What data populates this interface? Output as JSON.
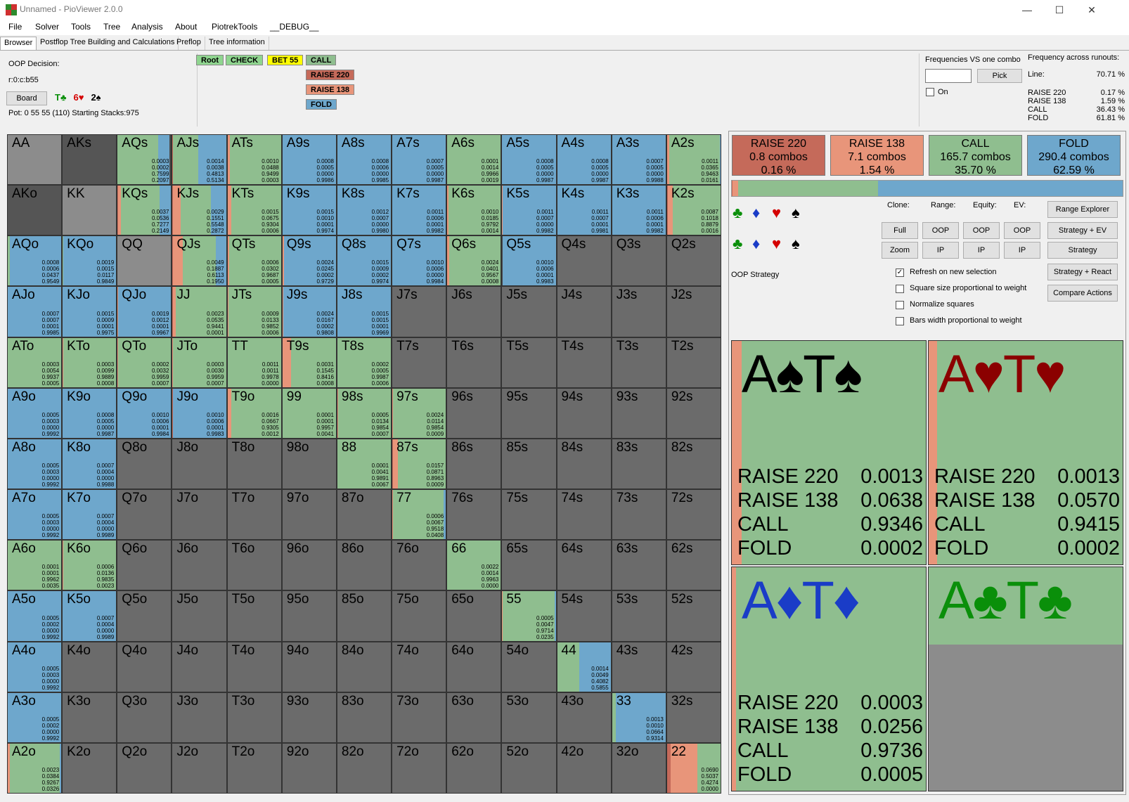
{
  "window": {
    "title": "Unnamed - PioViewer 2.0.0",
    "minimize": "—",
    "maximize": "☐",
    "close": "✕"
  },
  "menu": [
    "File",
    "Solver",
    "Tools",
    "Tree",
    "Analysis",
    "About",
    "PiotrekTools",
    "__DEBUG__"
  ],
  "tabs": [
    "Browser",
    "Postflop Tree Building and Calculations",
    "Preflop",
    "Tree information"
  ],
  "info": {
    "decision": "OOP Decision:",
    "line": "r:0:c:b55",
    "board_btn": "Board",
    "board_cards": [
      {
        "t": "T♣",
        "c": "#0a8f0a"
      },
      {
        "t": "6♥",
        "c": "#d40000"
      },
      {
        "t": "2♠",
        "c": "#000"
      }
    ],
    "pot": "Pot: 0 55 55 (110) Starting Stacks:975"
  },
  "tree_nodes": [
    {
      "t": "Root",
      "bg": "#8fd58f"
    },
    {
      "t": "CHECK",
      "bg": "#8fd58f"
    },
    {
      "t": "BET 55",
      "bg": "#ffff00"
    },
    {
      "t": "CALL",
      "bg": "#8fbe8f"
    },
    {
      "t": "RAISE 220",
      "bg": "#c56a5a"
    },
    {
      "t": "RAISE 138",
      "bg": "#e8957a"
    },
    {
      "t": "FOLD",
      "bg": "#6ea7cc"
    }
  ],
  "freq_panel": {
    "vs_combo": "Frequencies VS one combo",
    "pick": "Pick",
    "on": "On",
    "across": "Frequency across runouts:",
    "rows": [
      [
        "Line:",
        "70.71 %"
      ],
      [
        "RAISE 220",
        "0.17 %"
      ],
      [
        "RAISE 138",
        "1.59 %"
      ],
      [
        "CALL",
        "36.43 %"
      ],
      [
        "FOLD",
        "61.81 %"
      ]
    ]
  },
  "colors": {
    "raise220": "#c56a5a",
    "raise138": "#e8957a",
    "call": "#8fbe8f",
    "fold": "#6ea7cc",
    "empty": "#6b6b6b",
    "notinrange": "#8c8c8c"
  },
  "grid": [
    [
      "AA",
      "N",
      ""
    ],
    [
      "AKs",
      "D",
      ""
    ],
    [
      "AQs",
      "M",
      "0.0003 0.0002 0.7599 0.2097"
    ],
    [
      "AJs",
      "M",
      "0.0014 0.0038 0.4813 0.5134"
    ],
    [
      "ATs",
      "M",
      "0.0010 0.0488 0.9499 0.0003"
    ],
    [
      "A9s",
      "F",
      "0.0008 0.0005 0.0000 0.9986"
    ],
    [
      "A8s",
      "F",
      "0.0008 0.0006 0.0000 0.9985"
    ],
    [
      "A7s",
      "F",
      "0.0007 0.0005 0.0000 0.9987"
    ],
    [
      "A6s",
      "M",
      "0.0001 0.0014 0.9966 0.0019"
    ],
    [
      "A5s",
      "F",
      "0.0008 0.0005 0.0000 0.9987"
    ],
    [
      "A4s",
      "F",
      "0.0008 0.0005 0.0000 0.9987"
    ],
    [
      "A3s",
      "F",
      "0.0007 0.0005 0.0000 0.9988"
    ],
    [
      "A2s",
      "M",
      "0.0011 0.0365 0.9463 0.0161"
    ],
    [
      "AKo",
      "D",
      ""
    ],
    [
      "KK",
      "N",
      ""
    ],
    [
      "KQs",
      "M",
      "0.0037 0.0536 0.7277 0.2149"
    ],
    [
      "KJs",
      "M",
      "0.0029 0.1551 0.5548 0.2872"
    ],
    [
      "KTs",
      "M",
      "0.0015 0.0675 0.9304 0.0006"
    ],
    [
      "K9s",
      "F",
      "0.0015 0.0010 0.0001 0.9974"
    ],
    [
      "K8s",
      "F",
      "0.0012 0.0007 0.0000 0.9980"
    ],
    [
      "K7s",
      "F",
      "0.0011 0.0006 0.0001 0.9982"
    ],
    [
      "K6s",
      "M",
      "0.0010 0.0185 0.9792 0.0014"
    ],
    [
      "K5s",
      "F",
      "0.0011 0.0007 0.0000 0.9982"
    ],
    [
      "K4s",
      "F",
      "0.0011 0.0007 0.0001 0.9981"
    ],
    [
      "K3s",
      "F",
      "0.0011 0.0006 0.0001 0.9982"
    ],
    [
      "K2s",
      "M",
      "0.0087 0.1018 0.8879 0.0016"
    ],
    [
      "AQo",
      "F",
      "0.0008 0.0006 0.0437 0.9549"
    ],
    [
      "KQo",
      "F",
      "0.0019 0.0015 0.0117 0.9849"
    ],
    [
      "QQ",
      "N",
      ""
    ],
    [
      "QJs",
      "M",
      "0.0049 0.1887 0.6113 0.1950"
    ],
    [
      "QTs",
      "M",
      "0.0006 0.0302 0.9687 0.0005"
    ],
    [
      "Q9s",
      "F",
      "0.0024 0.0245 0.0002 0.9729"
    ],
    [
      "Q8s",
      "F",
      "0.0015 0.0009 0.0002 0.9974"
    ],
    [
      "Q7s",
      "F",
      "0.0010 0.0006 0.0000 0.9984"
    ],
    [
      "Q6s",
      "M",
      "0.0024 0.0401 0.9567 0.0008"
    ],
    [
      "Q5s",
      "F",
      "0.0010 0.0006 0.0001 0.9983"
    ],
    [
      "Q4s",
      "E",
      ""
    ],
    [
      "Q3s",
      "E",
      ""
    ],
    [
      "Q2s",
      "E",
      ""
    ],
    [
      "AJo",
      "F",
      "0.0007 0.0007 0.0001 0.9985"
    ],
    [
      "KJo",
      "F",
      "0.0015 0.0009 0.0001 0.9975"
    ],
    [
      "QJo",
      "F",
      "0.0019 0.0012 0.0001 0.9967"
    ],
    [
      "JJ",
      "M",
      "0.0023 0.0535 0.9441 0.0001"
    ],
    [
      "JTs",
      "M",
      "0.0009 0.0133 0.9852 0.0006"
    ],
    [
      "J9s",
      "F",
      "0.0024 0.0167 0.0002 0.9808"
    ],
    [
      "J8s",
      "F",
      "0.0015 0.0015 0.0001 0.9969"
    ],
    [
      "J7s",
      "E",
      ""
    ],
    [
      "J6s",
      "E",
      ""
    ],
    [
      "J5s",
      "E",
      ""
    ],
    [
      "J4s",
      "E",
      ""
    ],
    [
      "J3s",
      "E",
      ""
    ],
    [
      "J2s",
      "E",
      ""
    ],
    [
      "ATo",
      "M",
      "0.0003 0.0054 0.9937 0.0005"
    ],
    [
      "KTo",
      "M",
      "0.0003 0.0099 0.9889 0.0008"
    ],
    [
      "QTo",
      "M",
      "0.0002 0.0032 0.9959 0.0007"
    ],
    [
      "JTo",
      "M",
      "0.0003 0.0030 0.9959 0.0007"
    ],
    [
      "TT",
      "M",
      "0.0011 0.0011 0.9978 0.0000"
    ],
    [
      "T9s",
      "M",
      "0.0031 0.1545 0.8416 0.0008"
    ],
    [
      "T8s",
      "M",
      "0.0002 0.0005 0.9987 0.0006"
    ],
    [
      "T7s",
      "E",
      ""
    ],
    [
      "T6s",
      "E",
      ""
    ],
    [
      "T5s",
      "E",
      ""
    ],
    [
      "T4s",
      "E",
      ""
    ],
    [
      "T3s",
      "E",
      ""
    ],
    [
      "T2s",
      "E",
      ""
    ],
    [
      "A9o",
      "F",
      "0.0005 0.0003 0.0000 0.9992"
    ],
    [
      "K9o",
      "F",
      "0.0008 0.0005 0.0000 0.9987"
    ],
    [
      "Q9o",
      "F",
      "0.0010 0.0006 0.0001 0.9984"
    ],
    [
      "J9o",
      "F",
      "0.0010 0.0006 0.0001 0.9983"
    ],
    [
      "T9o",
      "M",
      "0.0016 0.0667 0.9305 0.0012"
    ],
    [
      "99",
      "M",
      "0.0001 0.0001 0.9957 0.0041"
    ],
    [
      "98s",
      "M",
      "0.0005 0.0134 0.9854 0.0007"
    ],
    [
      "97s",
      "M",
      "0.0024 0.0114 0.9854 0.0009"
    ],
    [
      "96s",
      "E",
      ""
    ],
    [
      "95s",
      "E",
      ""
    ],
    [
      "94s",
      "E",
      ""
    ],
    [
      "93s",
      "E",
      ""
    ],
    [
      "92s",
      "E",
      ""
    ],
    [
      "A8o",
      "F",
      "0.0005 0.0003 0.0000 0.9992"
    ],
    [
      "K8o",
      "F",
      "0.0007 0.0004 0.0000 0.9988"
    ],
    [
      "Q8o",
      "E",
      ""
    ],
    [
      "J8o",
      "E",
      ""
    ],
    [
      "T8o",
      "E",
      ""
    ],
    [
      "98o",
      "E",
      ""
    ],
    [
      "88",
      "M",
      "0.0001 0.0041 0.9891 0.0067"
    ],
    [
      "87s",
      "M",
      "0.0157 0.0871 0.8963 0.0009"
    ],
    [
      "86s",
      "E",
      ""
    ],
    [
      "85s",
      "E",
      ""
    ],
    [
      "84s",
      "E",
      ""
    ],
    [
      "83s",
      "E",
      ""
    ],
    [
      "82s",
      "E",
      ""
    ],
    [
      "A7o",
      "F",
      "0.0005 0.0003 0.0000 0.9992"
    ],
    [
      "K7o",
      "F",
      "0.0007 0.0004 0.0000 0.9989"
    ],
    [
      "Q7o",
      "E",
      ""
    ],
    [
      "J7o",
      "E",
      ""
    ],
    [
      "T7o",
      "E",
      ""
    ],
    [
      "97o",
      "E",
      ""
    ],
    [
      "87o",
      "E",
      ""
    ],
    [
      "77",
      "M",
      "0.0006 0.0067 0.9518 0.0408"
    ],
    [
      "76s",
      "E",
      ""
    ],
    [
      "75s",
      "E",
      ""
    ],
    [
      "74s",
      "E",
      ""
    ],
    [
      "73s",
      "E",
      ""
    ],
    [
      "72s",
      "E",
      ""
    ],
    [
      "A6o",
      "M",
      "0.0001 0.0001 0.9962 0.0035"
    ],
    [
      "K6o",
      "M",
      "0.0006 0.0136 0.9835 0.0023"
    ],
    [
      "Q6o",
      "E",
      ""
    ],
    [
      "J6o",
      "E",
      ""
    ],
    [
      "T6o",
      "E",
      ""
    ],
    [
      "96o",
      "E",
      ""
    ],
    [
      "86o",
      "E",
      ""
    ],
    [
      "76o",
      "E",
      ""
    ],
    [
      "66",
      "M",
      "0.0022 0.0014 0.9963 0.0000"
    ],
    [
      "65s",
      "E",
      ""
    ],
    [
      "64s",
      "E",
      ""
    ],
    [
      "63s",
      "E",
      ""
    ],
    [
      "62s",
      "E",
      ""
    ],
    [
      "A5o",
      "F",
      "0.0005 0.0002 0.0000 0.9992"
    ],
    [
      "K5o",
      "F",
      "0.0007 0.0004 0.0000 0.9989"
    ],
    [
      "Q5o",
      "E",
      ""
    ],
    [
      "J5o",
      "E",
      ""
    ],
    [
      "T5o",
      "E",
      ""
    ],
    [
      "95o",
      "E",
      ""
    ],
    [
      "85o",
      "E",
      ""
    ],
    [
      "75o",
      "E",
      ""
    ],
    [
      "65o",
      "E",
      ""
    ],
    [
      "55",
      "M",
      "0.0005 0.0047 0.9714 0.0235"
    ],
    [
      "54s",
      "E",
      ""
    ],
    [
      "53s",
      "E",
      ""
    ],
    [
      "52s",
      "E",
      ""
    ],
    [
      "A4o",
      "F",
      "0.0005 0.0003 0.0000 0.9992"
    ],
    [
      "K4o",
      "E",
      ""
    ],
    [
      "Q4o",
      "E",
      ""
    ],
    [
      "J4o",
      "E",
      ""
    ],
    [
      "T4o",
      "E",
      ""
    ],
    [
      "94o",
      "E",
      ""
    ],
    [
      "84o",
      "E",
      ""
    ],
    [
      "74o",
      "E",
      ""
    ],
    [
      "64o",
      "E",
      ""
    ],
    [
      "54o",
      "E",
      ""
    ],
    [
      "44",
      "M",
      "0.0014 0.0049 0.4082 0.5855"
    ],
    [
      "43s",
      "E",
      ""
    ],
    [
      "42s",
      "E",
      ""
    ],
    [
      "A3o",
      "F",
      "0.0005 0.0002 0.0000 0.9992"
    ],
    [
      "K3o",
      "E",
      ""
    ],
    [
      "Q3o",
      "E",
      ""
    ],
    [
      "J3o",
      "E",
      ""
    ],
    [
      "T3o",
      "E",
      ""
    ],
    [
      "93o",
      "E",
      ""
    ],
    [
      "83o",
      "E",
      ""
    ],
    [
      "73o",
      "E",
      ""
    ],
    [
      "63o",
      "E",
      ""
    ],
    [
      "53o",
      "E",
      ""
    ],
    [
      "43o",
      "E",
      ""
    ],
    [
      "33",
      "M",
      "0.0013 0.0010 0.0664 0.9314"
    ],
    [
      "32s",
      "E",
      ""
    ],
    [
      "A2o",
      "M",
      "0.0023 0.0384 0.9267 0.0326"
    ],
    [
      "K2o",
      "E",
      ""
    ],
    [
      "Q2o",
      "E",
      ""
    ],
    [
      "J2o",
      "E",
      ""
    ],
    [
      "T2o",
      "E",
      ""
    ],
    [
      "92o",
      "E",
      ""
    ],
    [
      "82o",
      "E",
      ""
    ],
    [
      "72o",
      "E",
      ""
    ],
    [
      "62o",
      "E",
      ""
    ],
    [
      "52o",
      "E",
      ""
    ],
    [
      "42o",
      "E",
      ""
    ],
    [
      "32o",
      "E",
      ""
    ],
    [
      "22",
      "M",
      "0.0690 0.5037 0.4274 0.0000"
    ]
  ],
  "summary": [
    {
      "label": "RAISE 220",
      "combos": "0.8 combos",
      "pct": "0.16 %"
    },
    {
      "label": "RAISE 138",
      "combos": "7.1 combos",
      "pct": "1.54 %"
    },
    {
      "label": "CALL",
      "combos": "165.7 combos",
      "pct": "35.70 %"
    },
    {
      "label": "FOLD",
      "combos": "290.4 combos",
      "pct": "62.59 %"
    }
  ],
  "summary_bar": [
    0.0016,
    0.0154,
    0.357,
    0.6259
  ],
  "controls": {
    "clone": "Clone:",
    "range": "Range:",
    "equity": "Equity:",
    "ev": "EV:",
    "full": "Full",
    "zoom": "Zoom",
    "oop": "OOP",
    "ip": "IP",
    "range_explorer": "Range Explorer",
    "strategy_ev": "Strategy + EV",
    "strategy": "Strategy",
    "strategy_react": "Strategy + React",
    "compare": "Compare Actions",
    "oop_strategy": "OOP Strategy",
    "checks": [
      {
        "label": "Refresh on new selection",
        "checked": true
      },
      {
        "label": "Square size proportional to weight",
        "checked": false
      },
      {
        "label": "Normalize squares",
        "checked": false
      },
      {
        "label": "Bars width proportional to weight",
        "checked": false
      }
    ]
  },
  "suits": [
    {
      "t": "♣",
      "c": "#0a8f0a"
    },
    {
      "t": "♦",
      "c": "#1a3cc7"
    },
    {
      "t": "♥",
      "c": "#d40000"
    },
    {
      "t": "♠",
      "c": "#000"
    }
  ],
  "combos": [
    {
      "title": "A♠T♠",
      "color": "#000",
      "r220": "0.0013",
      "r138": "0.0638",
      "call": "0.9346",
      "fold": "0.0002",
      "bar": 0.07
    },
    {
      "title": "A♥T♥",
      "color": "#8b0000",
      "r220": "0.0013",
      "r138": "0.0570",
      "call": "0.9415",
      "fold": "0.0002",
      "bar": 0.06
    },
    {
      "title": "A♦T♦",
      "color": "#1a3cc7",
      "r220": "0.0003",
      "r138": "0.0256",
      "call": "0.9736",
      "fold": "0.0005",
      "bar": 0.026
    },
    {
      "title": "A♣T♣",
      "color": "#0a8f0a",
      "r220": "",
      "r138": "",
      "call": "",
      "fold": "",
      "bar": 0
    }
  ],
  "combo_labels": {
    "r220": "RAISE 220",
    "r138": "RAISE 138",
    "call": "CALL",
    "fold": "FOLD"
  }
}
